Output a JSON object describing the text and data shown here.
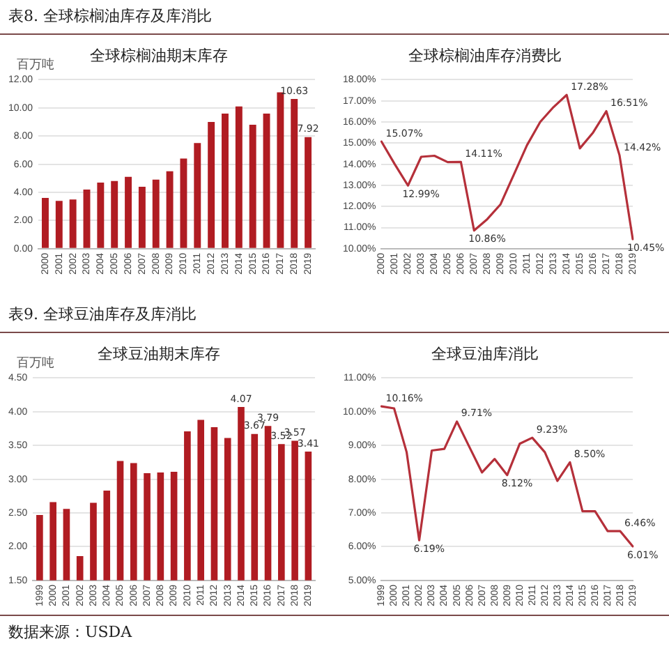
{
  "chart_data": [
    {
      "type": "bar",
      "title": "全球棕榈油期末库存",
      "ylabel": "百万吨",
      "annotations": [
        "表8.  全球棕榈油库存及库消比"
      ],
      "categories": [
        "2000",
        "2001",
        "2002",
        "2003",
        "2004",
        "2005",
        "2006",
        "2007",
        "2008",
        "2009",
        "2010",
        "2011",
        "2012",
        "2013",
        "2014",
        "2015",
        "2016",
        "2017",
        "2018",
        "2019"
      ],
      "values": [
        3.6,
        3.4,
        3.5,
        4.2,
        4.7,
        4.8,
        5.1,
        4.4,
        4.9,
        5.5,
        6.4,
        7.5,
        9.0,
        9.6,
        10.1,
        8.8,
        9.6,
        11.1,
        10.63,
        7.92
      ],
      "value_labels": [
        null,
        null,
        null,
        null,
        null,
        null,
        null,
        null,
        null,
        null,
        null,
        null,
        null,
        null,
        null,
        null,
        null,
        null,
        "10.63",
        "7.92"
      ],
      "color": "#b01c22",
      "ylim": [
        0,
        12
      ],
      "yticks": [
        {
          "value": 0,
          "label": "0.00"
        },
        {
          "value": 2,
          "label": "2.00"
        },
        {
          "value": 4,
          "label": "4.00"
        },
        {
          "value": 6,
          "label": "6.00"
        },
        {
          "value": 8,
          "label": "8.00"
        },
        {
          "value": 10,
          "label": "10.00"
        },
        {
          "value": 12,
          "label": "12.00"
        }
      ],
      "grid": "y"
    },
    {
      "type": "line",
      "title": "全球棕榈油库存消费比",
      "categories": [
        "2000",
        "2001",
        "2002",
        "2003",
        "2004",
        "2005",
        "2006",
        "2007",
        "2008",
        "2009",
        "2010",
        "2011",
        "2012",
        "2013",
        "2014",
        "2015",
        "2016",
        "2017",
        "2018",
        "2019"
      ],
      "values": [
        15.07,
        14.0,
        12.99,
        14.35,
        14.4,
        14.1,
        14.11,
        10.86,
        11.4,
        12.1,
        13.5,
        14.9,
        16.0,
        16.7,
        17.28,
        14.75,
        15.5,
        16.51,
        14.42,
        10.45
      ],
      "value_labels": [
        "15.07%",
        null,
        "12.99%",
        null,
        null,
        null,
        "14.11%",
        "10.86%",
        null,
        null,
        null,
        null,
        null,
        null,
        "17.28%",
        null,
        null,
        "16.51%",
        "14.42%",
        "10.45%"
      ],
      "color": "#b5303a",
      "ylim": [
        10,
        18
      ],
      "yticks": [
        {
          "value": 10,
          "label": "10.00%"
        },
        {
          "value": 11,
          "label": "11.00%"
        },
        {
          "value": 12,
          "label": "12.00%"
        },
        {
          "value": 13,
          "label": "13.00%"
        },
        {
          "value": 14,
          "label": "14.00%"
        },
        {
          "value": 15,
          "label": "15.00%"
        },
        {
          "value": 16,
          "label": "16.00%"
        },
        {
          "value": 17,
          "label": "17.00%"
        },
        {
          "value": 18,
          "label": "18.00%"
        }
      ],
      "grid": "y"
    },
    {
      "type": "bar",
      "title": "全球豆油期末库存",
      "ylabel": "百万吨",
      "annotations": [
        "表9.  全球豆油库存及库消比",
        "数据来源：USDA"
      ],
      "categories": [
        "1999",
        "2000",
        "2001",
        "2002",
        "2003",
        "2004",
        "2005",
        "2006",
        "2007",
        "2008",
        "2009",
        "2010",
        "2011",
        "2012",
        "2013",
        "2014",
        "2015",
        "2016",
        "2017",
        "2018",
        "2019"
      ],
      "values": [
        2.47,
        2.66,
        2.56,
        1.86,
        2.65,
        2.83,
        3.27,
        3.24,
        3.09,
        3.1,
        3.11,
        3.71,
        3.88,
        3.77,
        3.61,
        4.07,
        3.67,
        3.79,
        3.52,
        3.57,
        3.41
      ],
      "value_labels": [
        null,
        null,
        null,
        null,
        null,
        null,
        null,
        null,
        null,
        null,
        null,
        null,
        null,
        null,
        null,
        "4.07",
        "3.67",
        "3.79",
        "3.52",
        "3.57",
        "3.41"
      ],
      "color": "#b01c22",
      "ylim": [
        1.5,
        4.5
      ],
      "yticks": [
        {
          "value": 1.5,
          "label": "1.50"
        },
        {
          "value": 2,
          "label": "2.00"
        },
        {
          "value": 2.5,
          "label": "2.50"
        },
        {
          "value": 3,
          "label": "3.00"
        },
        {
          "value": 3.5,
          "label": "3.50"
        },
        {
          "value": 4,
          "label": "4.00"
        },
        {
          "value": 4.5,
          "label": "4.50"
        }
      ],
      "grid": "y"
    },
    {
      "type": "line",
      "title": "全球豆油库消比",
      "categories": [
        "1999",
        "2000",
        "2001",
        "2002",
        "2003",
        "2004",
        "2005",
        "2006",
        "2007",
        "2008",
        "2009",
        "2010",
        "2011",
        "2012",
        "2013",
        "2014",
        "2015",
        "2016",
        "2017",
        "2018",
        "2019"
      ],
      "values": [
        10.16,
        10.1,
        8.8,
        6.19,
        8.85,
        8.9,
        9.71,
        8.95,
        8.2,
        8.6,
        8.12,
        9.05,
        9.23,
        8.8,
        7.95,
        8.5,
        7.05,
        7.05,
        6.46,
        6.46,
        6.01
      ],
      "value_labels": [
        "10.16%",
        null,
        null,
        "6.19%",
        null,
        null,
        "9.71%",
        null,
        null,
        null,
        "8.12%",
        null,
        "9.23%",
        null,
        null,
        "8.50%",
        null,
        null,
        null,
        "6.46%",
        "6.01%"
      ],
      "color": "#b5303a",
      "ylim": [
        5,
        11
      ],
      "yticks": [
        {
          "value": 5,
          "label": "5.00%"
        },
        {
          "value": 6,
          "label": "6.00%"
        },
        {
          "value": 7,
          "label": "7.00%"
        },
        {
          "value": 8,
          "label": "8.00%"
        },
        {
          "value": 9,
          "label": "9.00%"
        },
        {
          "value": 10,
          "label": "10.00%"
        },
        {
          "value": 11,
          "label": "11.00%"
        }
      ],
      "grid": "y"
    }
  ]
}
